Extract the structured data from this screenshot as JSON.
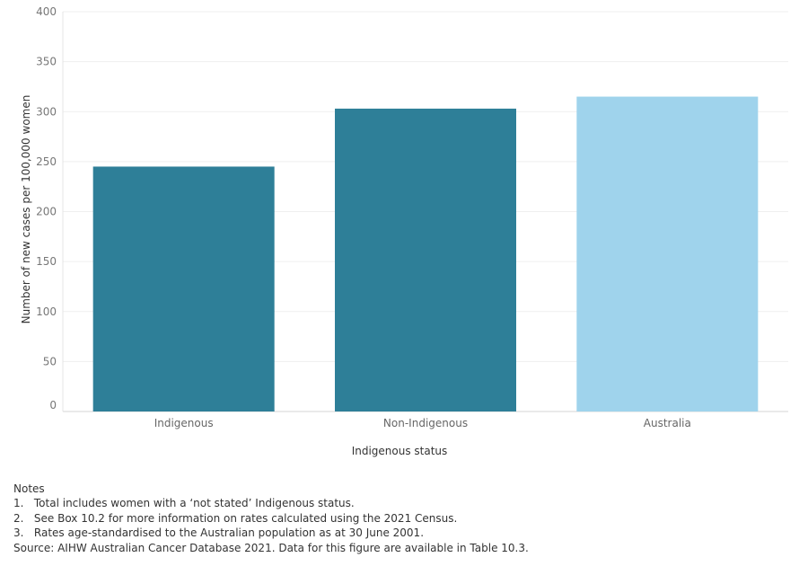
{
  "chart_data": {
    "type": "bar",
    "categories": [
      "Indigenous",
      "Non-Indigenous",
      "Australia"
    ],
    "values": [
      245,
      303,
      315
    ],
    "colors": [
      "#2e7f98",
      "#2e7f98",
      "#9fd3ec"
    ],
    "xlabel": "Indigenous status",
    "ylabel": "Number of new cases per 100,000 women",
    "ylim": [
      0,
      400
    ],
    "yticks": [
      0,
      50,
      100,
      150,
      200,
      250,
      300,
      350,
      400
    ],
    "grid": true
  },
  "notes": {
    "heading": "Notes",
    "items": [
      "1.   Total includes women with a ‘not stated’ Indigenous status.",
      "2.   See Box 10.2 for more information on rates calculated using the 2021 Census.",
      "3.   Rates age-standardised to the Australian population as at 30 June 2001."
    ],
    "source": "Source: AIHW Australian Cancer Database 2021. Data for this figure are available in Table 10.3."
  }
}
